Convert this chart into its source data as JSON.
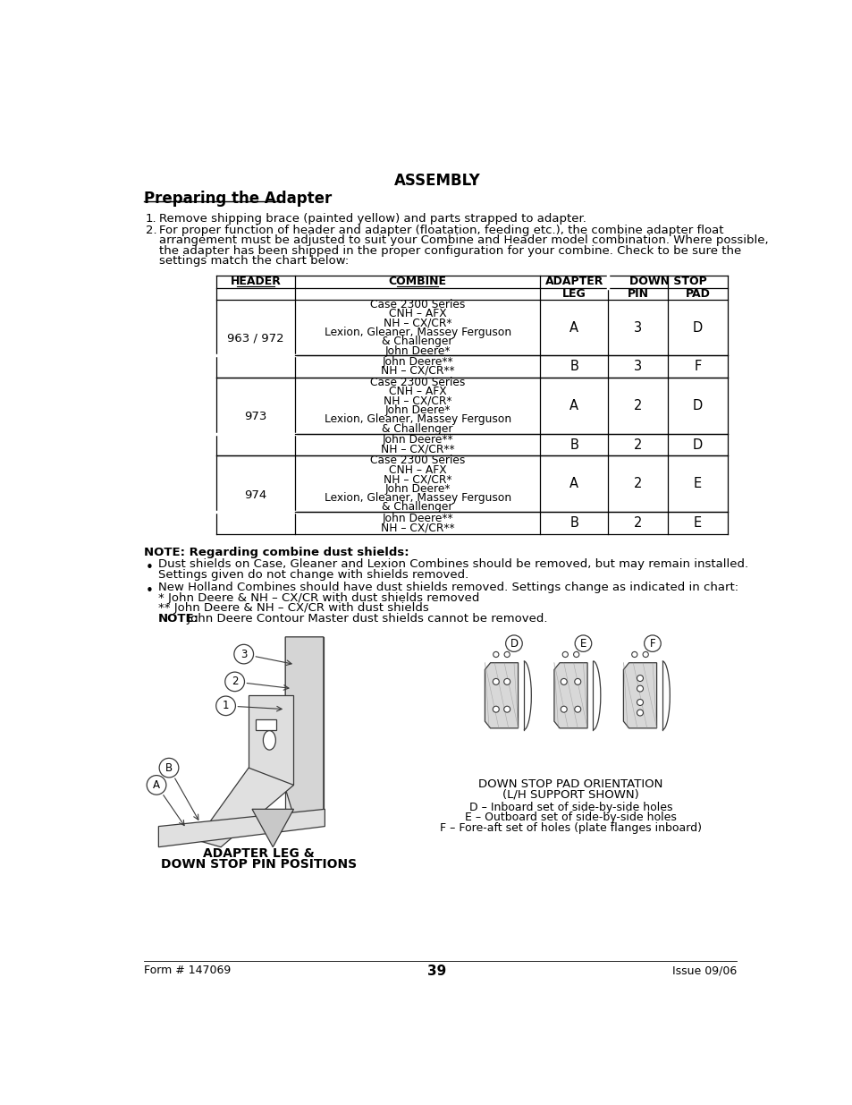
{
  "bg_color": "#ffffff",
  "page_width": 9.54,
  "page_height": 12.35,
  "title": "ASSEMBLY",
  "section_title": "Preparing the Adapter",
  "item1": "Remove shipping brace (painted yellow) and parts strapped to adapter.",
  "item2_lines": [
    "For proper function of header and adapter (floatation, feeding etc.), the combine adapter float",
    "arrangement must be adjusted to suit your Combine and Header model combination. Where possible,",
    "the adapter has been shipped in the proper configuration for your combine. Check to be sure the",
    "settings match the chart below:"
  ],
  "table_rows": [
    {
      "header": "963 / 972",
      "combine": "Case 2300 Series\nCNH – AFX\nNH – CX/CR*\nLexion, Gleaner, Massey Ferguson\n& Challenger\nJohn Deere*",
      "leg": "A",
      "pin": "3",
      "pad": "D",
      "span_start": true
    },
    {
      "header": "",
      "combine": "John Deere**\nNH – CX/CR**",
      "leg": "B",
      "pin": "3",
      "pad": "F",
      "span_start": false
    },
    {
      "header": "973",
      "combine": "Case 2300 Series\nCNH – AFX\nNH – CX/CR*\nJohn Deere*\nLexion, Gleaner, Massey Ferguson\n& Challenger",
      "leg": "A",
      "pin": "2",
      "pad": "D",
      "span_start": true
    },
    {
      "header": "",
      "combine": "John Deere**\nNH – CX/CR**",
      "leg": "B",
      "pin": "2",
      "pad": "D",
      "span_start": false
    },
    {
      "header": "974",
      "combine": "Case 2300 Series\nCNH – AFX\nNH – CX/CR*\nJohn Deere*\nLexion, Gleaner, Massey Ferguson\n& Challenger",
      "leg": "A",
      "pin": "2",
      "pad": "E",
      "span_start": true
    },
    {
      "header": "",
      "combine": "John Deere**\nNH – CX/CR**",
      "leg": "B",
      "pin": "2",
      "pad": "E",
      "span_start": false
    }
  ],
  "note_title": "NOTE: Regarding combine dust shields:",
  "b1_lines": [
    "Dust shields on Case, Gleaner and Lexion Combines should be removed, but may remain installed.",
    "Settings given do not change with shields removed."
  ],
  "b2_lines": [
    "New Holland Combines should have dust shields removed. Settings change as indicated in chart:",
    "* John Deere & NH – CX/CR with dust shields removed",
    "** John Deere & NH – CX/CR with dust shields"
  ],
  "note2_bold": "NOTE:",
  "note2_rest": " John Deere Contour Master dust shields cannot be removed.",
  "fig_left_cap1": "ADAPTER LEG &",
  "fig_left_cap2": "DOWN STOP PIN POSITIONS",
  "fig_right_cap1": "DOWN STOP PAD ORIENTATION",
  "fig_right_cap2": "(L/H SUPPORT SHOWN)",
  "fig_right_d": "D – Inboard set of side-by-side holes",
  "fig_right_e": "E – Outboard set of side-by-side holes",
  "fig_right_f": "F – Fore-aft set of holes (plate flanges inboard)",
  "footer_left": "Form # 147069",
  "footer_center": "39",
  "footer_right": "Issue 09/06"
}
